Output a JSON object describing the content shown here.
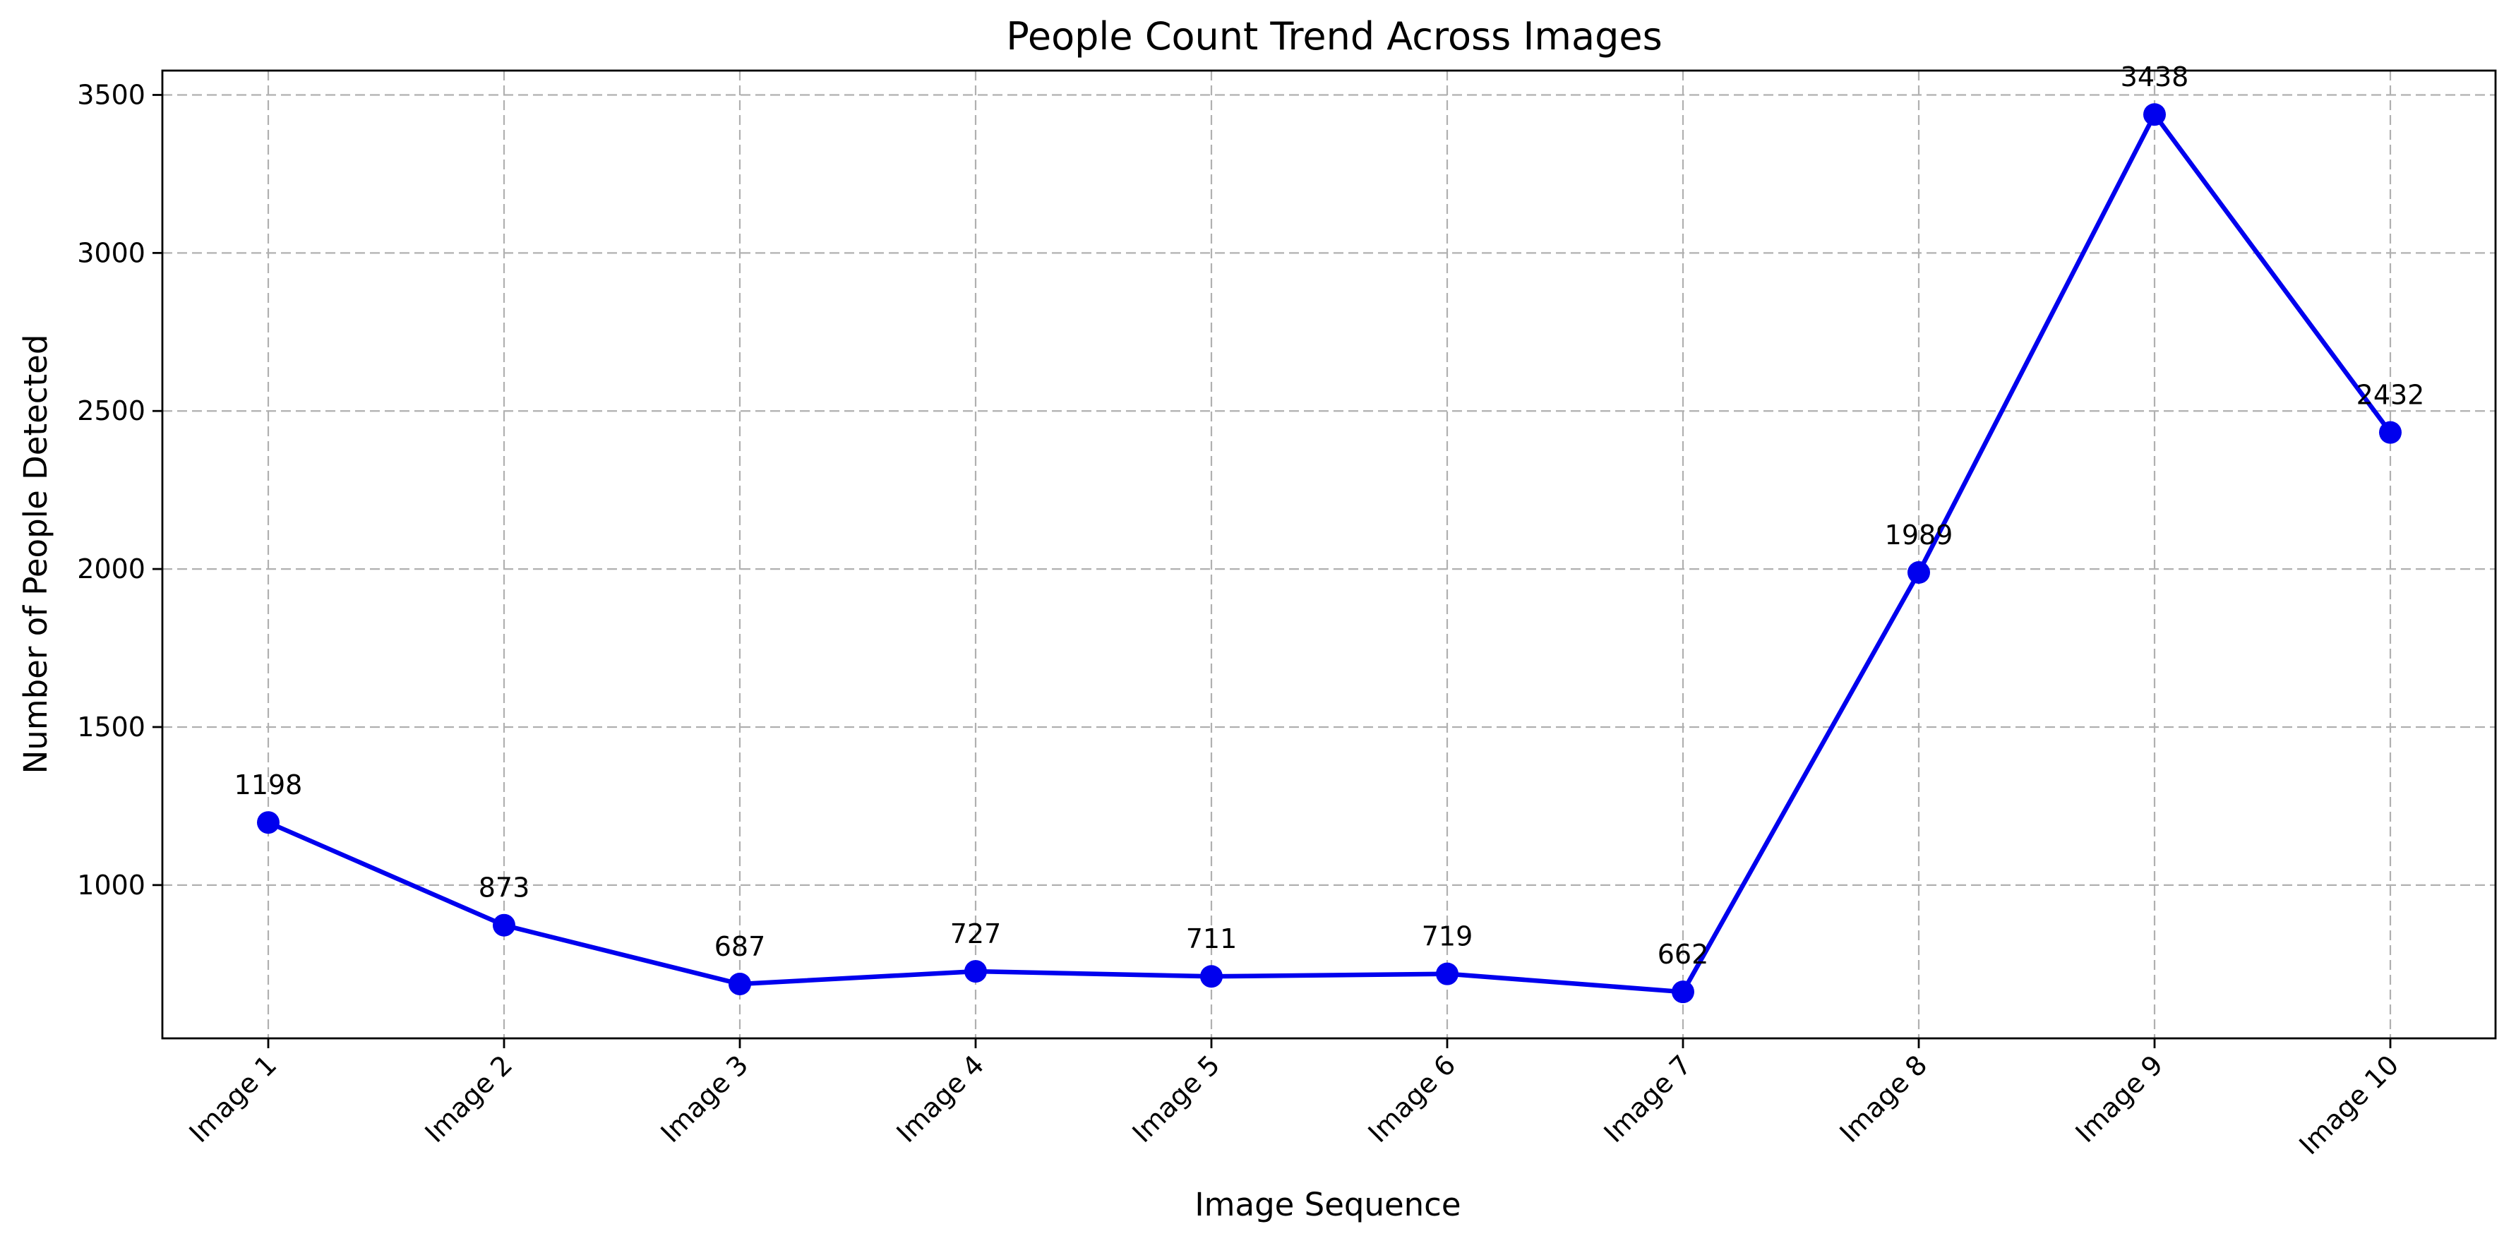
{
  "chart_data": {
    "type": "line",
    "title": "People Count Trend Across Images",
    "xlabel": "Image Sequence",
    "ylabel": "Number of People Detected",
    "categories": [
      "Image 1",
      "Image 2",
      "Image 3",
      "Image 4",
      "Image 5",
      "Image 6",
      "Image 7",
      "Image 8",
      "Image 9",
      "Image 10"
    ],
    "series": [
      {
        "values": [
          1198,
          873,
          687,
          727,
          711,
          719,
          662,
          1989,
          3438,
          2432
        ],
        "color": "#0000ee",
        "marker": "circle"
      }
    ],
    "data_labels": [
      "1198",
      "873",
      "687",
      "727",
      "711",
      "719",
      "662",
      "1989",
      "3438",
      "2432"
    ],
    "y_ticks": [
      1000,
      1500,
      2000,
      2500,
      3000,
      3500
    ],
    "ylim": [
      515,
      3577
    ],
    "grid": true,
    "grid_style": "dashed"
  }
}
